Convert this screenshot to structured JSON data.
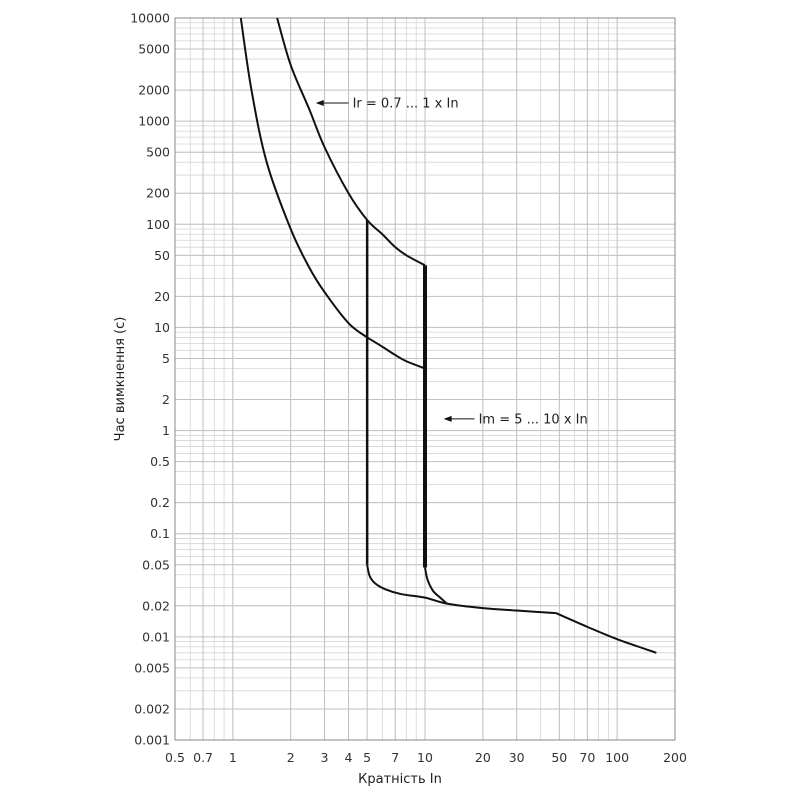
{
  "chart_data": {
    "type": "line",
    "title": "",
    "xlabel": "Кратність In",
    "ylabel": "Час вимкнення (с)",
    "x_scale": "log",
    "y_scale": "log",
    "xlim": [
      0.5,
      200
    ],
    "ylim": [
      0.001,
      10000
    ],
    "grid": true,
    "x_ticks": [
      0.5,
      0.7,
      1,
      2,
      3,
      4,
      5,
      7,
      10,
      20,
      30,
      50,
      70,
      100,
      200
    ],
    "x_tick_labels": [
      "0.5",
      "0.7",
      "1",
      "2",
      "3",
      "4",
      "5",
      "7",
      "10",
      "20",
      "30",
      "50",
      "70",
      "100",
      "200"
    ],
    "y_ticks": [
      0.001,
      0.002,
      0.005,
      0.01,
      0.02,
      0.05,
      0.1,
      0.2,
      0.5,
      1,
      2,
      5,
      10,
      20,
      50,
      100,
      200,
      500,
      1000,
      2000,
      5000,
      10000
    ],
    "y_tick_labels": [
      "0.001",
      "0.002",
      "0.005",
      "0.01",
      "0.02",
      "0.05",
      "0.1",
      "0.2",
      "0.5",
      "1",
      "2",
      "5",
      "10",
      "20",
      "50",
      "100",
      "200",
      "500",
      "1000",
      "2000",
      "5000",
      "10000"
    ],
    "series": [
      {
        "name": "",
        "width": 2,
        "x": [
          1.1,
          1.25,
          1.5,
          2,
          2.5,
          3,
          4,
          5
        ],
        "y": [
          10000,
          2000,
          400,
          90,
          38,
          22,
          11,
          8
        ]
      },
      {
        "name": "",
        "width": 2,
        "x": [
          5,
          6,
          7,
          8,
          10
        ],
        "y": [
          8,
          6.5,
          5.4,
          4.7,
          4
        ]
      },
      {
        "name": "",
        "width": 2,
        "x": [
          1.7,
          2,
          2.5,
          3,
          4,
          5,
          6,
          7,
          8,
          10
        ],
        "y": [
          10000,
          3500,
          1300,
          560,
          200,
          110,
          80,
          60,
          50,
          40
        ]
      },
      {
        "name": "",
        "width": 2.5,
        "x": [
          5,
          5
        ],
        "y": [
          110,
          0.05
        ]
      },
      {
        "name": "",
        "width": 4,
        "x": [
          10,
          10
        ],
        "y": [
          40,
          0.047
        ]
      },
      {
        "name": "",
        "width": 2,
        "x": [
          5,
          5.15,
          5.5,
          6.2,
          7.5,
          10,
          13,
          20,
          30,
          48
        ],
        "y": [
          0.05,
          0.039,
          0.033,
          0.029,
          0.026,
          0.024,
          0.021,
          0.019,
          0.018,
          0.017
        ]
      },
      {
        "name": "",
        "width": 2,
        "x": [
          10,
          10.3,
          11,
          12,
          13
        ],
        "y": [
          0.047,
          0.036,
          0.028,
          0.024,
          0.021
        ]
      },
      {
        "name": "",
        "width": 2,
        "x": [
          48,
          70,
          100,
          160
        ],
        "y": [
          0.017,
          0.0125,
          0.0095,
          0.007
        ]
      }
    ],
    "annotations": [
      {
        "text": "Ir = 0.7 ... 1 x In",
        "arrow_tip": [
          2.7,
          1500
        ],
        "label_at": [
          4.2,
          1500
        ]
      },
      {
        "text": "Im = 5 ... 10 x In",
        "arrow_tip": [
          12.5,
          1.3
        ],
        "label_at": [
          19,
          1.3
        ]
      }
    ]
  }
}
